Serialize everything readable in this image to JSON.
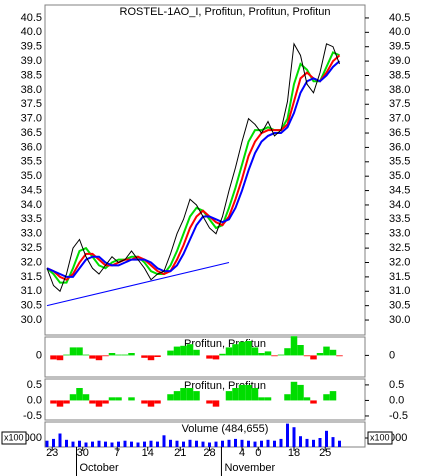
{
  "chart_data": [
    {
      "type": "line",
      "title": "ROSTEL-1AO_I, Profitun, Profitun, Profitun",
      "ylim": [
        29.48,
        40.95
      ],
      "yticks": [
        {
          "value": 30,
          "label": "30.0"
        },
        30.5,
        {
          "value": 31,
          "label": "31.0"
        },
        31.5,
        {
          "value": 32,
          "label": "32.0"
        },
        32.5,
        {
          "value": 33,
          "label": "33.0"
        },
        33.5,
        {
          "value": 34,
          "label": "34.0"
        },
        34.5,
        {
          "value": 35,
          "label": "35.0"
        },
        35.5,
        {
          "value": 36,
          "label": "36.0"
        },
        36.5,
        {
          "value": 37,
          "label": "37.0"
        },
        37.5,
        {
          "value": 38,
          "label": "38.0"
        },
        38.5,
        {
          "value": 39,
          "label": "39.0"
        },
        39.5,
        {
          "value": 40,
          "label": "40.0"
        },
        40.5
      ],
      "series": [
        {
          "color": "#000000",
          "values": [
            31.8,
            31.2,
            31.0,
            31.6,
            32.5,
            32.8,
            32.2,
            31.8,
            31.6,
            31.9,
            32.2,
            32.0,
            32.1,
            32.4,
            32.1,
            31.8,
            31.4,
            31.6,
            31.7,
            32.3,
            33.0,
            33.5,
            34.2,
            34.0,
            33.6,
            33.2,
            33.0,
            33.6,
            34.5,
            35.3,
            36.2,
            37.0,
            36.8,
            36.5,
            36.9,
            36.4,
            36.6,
            37.6,
            39.6,
            39.2,
            38.2,
            37.9,
            38.6,
            39.6,
            39.5,
            38.9
          ]
        },
        {
          "color": "#0000ff",
          "values": [
            31.8,
            31.7,
            31.6,
            31.5,
            31.5,
            31.8,
            32.1,
            32.2,
            32.2,
            32.0,
            31.9,
            31.9,
            32.0,
            32.1,
            32.1,
            32.1,
            32.0,
            31.8,
            31.7,
            31.7,
            31.9,
            32.3,
            32.8,
            33.3,
            33.6,
            33.6,
            33.5,
            33.4,
            33.5,
            33.9,
            34.5,
            35.2,
            35.8,
            36.2,
            36.4,
            36.5,
            36.5,
            36.7,
            37.2,
            37.9,
            38.3,
            38.4,
            38.3,
            38.5,
            38.8,
            39.0
          ]
        },
        {
          "color": "#ff0000",
          "values": [
            31.8,
            31.7,
            31.5,
            31.4,
            31.6,
            32.0,
            32.3,
            32.3,
            32.1,
            31.9,
            31.9,
            32.0,
            32.1,
            32.1,
            32.2,
            32.1,
            31.9,
            31.7,
            31.6,
            31.7,
            32.1,
            32.6,
            33.2,
            33.6,
            33.8,
            33.6,
            33.4,
            33.3,
            33.6,
            34.2,
            34.9,
            35.7,
            36.2,
            36.5,
            36.6,
            36.6,
            36.6,
            36.8,
            37.6,
            38.4,
            38.6,
            38.4,
            38.3,
            38.6,
            39.0,
            39.2
          ]
        },
        {
          "color": "#00dd00",
          "values": [
            31.8,
            31.6,
            31.3,
            31.3,
            31.8,
            32.4,
            32.5,
            32.2,
            31.9,
            31.8,
            32.0,
            32.1,
            32.1,
            32.2,
            32.2,
            32.0,
            31.7,
            31.6,
            31.6,
            31.9,
            32.4,
            33.0,
            33.6,
            33.9,
            33.8,
            33.5,
            33.2,
            33.3,
            33.9,
            34.6,
            35.4,
            36.2,
            36.6,
            36.6,
            36.7,
            36.6,
            36.6,
            37.0,
            38.2,
            38.9,
            38.7,
            38.3,
            38.3,
            38.8,
            39.3,
            39.2
          ]
        }
      ],
      "trendline": {
        "color": "#0000ff",
        "x": [
          0,
          28
        ],
        "y": [
          30.5,
          32.0
        ]
      }
    },
    {
      "type": "histogram",
      "title": "Profitun, Profitun",
      "ylim": [
        -2.7,
        2.3
      ],
      "yticks": [
        0
      ],
      "colors": {
        "positive": "#00dd00",
        "negative": "#ff0000"
      },
      "values": [
        0,
        -0.5,
        -0.6,
        0.1,
        1.0,
        1.0,
        0.1,
        -0.4,
        -0.6,
        -0.1,
        0.3,
        0.1,
        0.1,
        0.3,
        0,
        -0.3,
        -0.6,
        -0.2,
        0,
        0.6,
        1.1,
        1.2,
        1.4,
        0.7,
        0,
        -0.4,
        -0.5,
        0.2,
        1.0,
        1.4,
        1.7,
        1.8,
        1.0,
        0.3,
        0.5,
        -0.1,
        0.1,
        0.9,
        2.4,
        1.3,
        -0.1,
        -0.5,
        0.3,
        1.1,
        0.7,
        -0.1
      ]
    },
    {
      "type": "histogram",
      "title": "Profitun, Profitun",
      "ylim": [
        -0.63,
        0.69
      ],
      "yticks": [
        -0.5,
        {
          "value": 0,
          "label": "0.0"
        },
        0.5
      ],
      "colors": {
        "positive": "#00dd00",
        "negative": "#ff0000"
      },
      "values": [
        0,
        -0.1,
        -0.2,
        -0.1,
        0.2,
        0.4,
        0.2,
        -0.1,
        -0.2,
        -0.1,
        0.1,
        0.1,
        0,
        0.1,
        0,
        -0.1,
        -0.2,
        -0.1,
        0,
        0.2,
        0.3,
        0.4,
        0.4,
        0.3,
        0,
        -0.1,
        -0.2,
        0,
        0.3,
        0.4,
        0.5,
        0.5,
        0.4,
        0.1,
        0.1,
        0,
        0,
        0.2,
        0.6,
        0.5,
        0.1,
        -0.1,
        0,
        0.2,
        0.3,
        0
      ]
    },
    {
      "type": "bar",
      "title": "Volume (484,655)",
      "unit": "x100",
      "ylim": [
        0,
        2780
      ],
      "yticks": [
        {
          "value": 1000,
          "label": "000"
        }
      ],
      "color": "#0000ff",
      "values": [
        700,
        900,
        1500,
        800,
        600,
        700,
        500,
        600,
        700,
        600,
        500,
        600,
        700,
        600,
        500,
        600,
        700,
        600,
        1300,
        800,
        700,
        600,
        800,
        700,
        600,
        500,
        600,
        700,
        800,
        900,
        800,
        700,
        600,
        700,
        800,
        700,
        900,
        2600,
        2200,
        1200,
        900,
        800,
        1000,
        1800,
        1100,
        700
      ],
      "xticks": [
        {
          "value": 0.8,
          "label": "23"
        },
        {
          "value": 5.5,
          "label": "30"
        },
        {
          "value": 10.8,
          "label": "7"
        },
        {
          "value": 15.5,
          "label": "14"
        },
        {
          "value": 20.5,
          "label": "21"
        },
        {
          "value": 25,
          "label": "28"
        },
        {
          "value": 30,
          "label": "4"
        },
        {
          "value": 32.5,
          "label": "0"
        },
        {
          "value": 38,
          "label": "18"
        },
        {
          "value": 42.8,
          "label": "25"
        }
      ],
      "months": [
        {
          "value": 5,
          "label": "October"
        },
        {
          "value": 27.3,
          "label": "November"
        }
      ]
    }
  ]
}
